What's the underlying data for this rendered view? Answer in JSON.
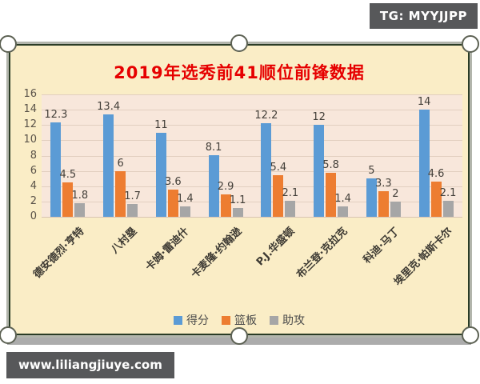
{
  "badges": {
    "telegram": "TG: MYYJJPP",
    "website": "www.liliangjiuye.com"
  },
  "chart_data": {
    "type": "bar",
    "title": "2019年选秀前41顺位前锋数据",
    "categories": [
      "德安德烈·亨特",
      "八村塁",
      "卡姆·雷迪什",
      "卡麦隆·约翰逊",
      "P.J.华盛顿",
      "布兰登·克拉克",
      "科迪·马丁",
      "埃里克·帕斯卡尔"
    ],
    "series": [
      {
        "name": "得分",
        "color": "#5B9BD5",
        "values": [
          12.3,
          13.4,
          11,
          8.1,
          12.2,
          12,
          5,
          14
        ]
      },
      {
        "name": "篮板",
        "color": "#ED7D31",
        "values": [
          4.5,
          6,
          3.6,
          2.9,
          5.4,
          5.8,
          3.3,
          4.6
        ]
      },
      {
        "name": "助攻",
        "color": "#A6A6A6",
        "values": [
          1.8,
          1.7,
          1.4,
          1.1,
          2.1,
          1.4,
          2,
          2.1
        ]
      }
    ],
    "xlabel": "",
    "ylabel": "",
    "ylim": [
      0,
      16
    ],
    "ytick_step": 2,
    "grid": true,
    "legend_position": "bottom"
  },
  "colors": {
    "title_text": "#E60000",
    "frame_bg": "#FAEDC6",
    "plot_bg": "#F8E7DB",
    "gridline": "#E2CFBF",
    "frame_border": "#2A3C26",
    "badge_bg": "#57585A",
    "axis_text": "#5A5349",
    "value_text": "#44403A"
  }
}
